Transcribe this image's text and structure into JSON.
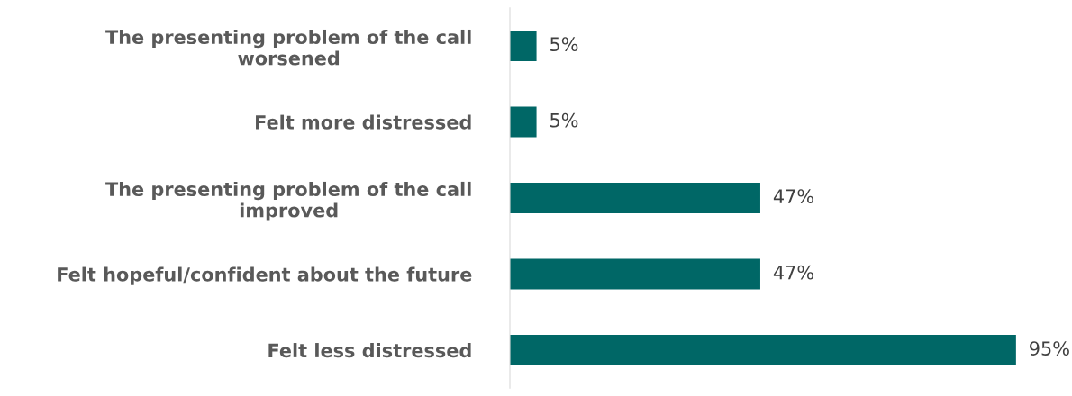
{
  "chart_data": {
    "type": "bar",
    "orientation": "horizontal",
    "categories": [
      "The presenting problem of the call worsened",
      "Felt more distressed",
      "The presenting problem of the call improved",
      "Felt hopeful/confident about the future",
      "Felt less distressed"
    ],
    "values": [
      5,
      5,
      47,
      47,
      95
    ],
    "value_labels": [
      "5%",
      "5%",
      "47%",
      "47%",
      "95%"
    ],
    "color": "#006766",
    "grid": false,
    "legend": false
  }
}
